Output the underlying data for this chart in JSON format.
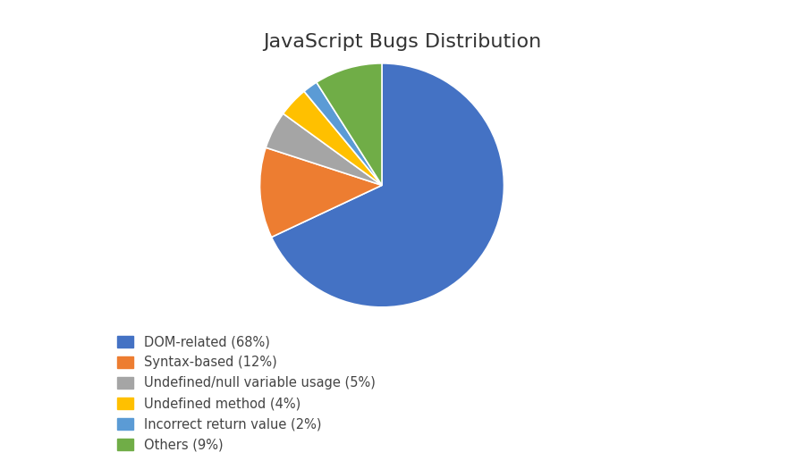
{
  "title": "JavaScript Bugs Distribution",
  "labels": [
    "DOM-related (68%)",
    "Syntax-based (12%)",
    "Undefined/null variable usage (5%)",
    "Undefined method (4%)",
    "Incorrect return value (2%)",
    "Others (9%)"
  ],
  "values": [
    68,
    12,
    5,
    4,
    2,
    9
  ],
  "colors": [
    "#4472C4",
    "#ED7D31",
    "#A5A5A5",
    "#FFC000",
    "#5B9BD5",
    "#70AD47"
  ],
  "title_fontsize": 16,
  "legend_fontsize": 10.5,
  "background_color": "#ffffff",
  "startangle": 90
}
